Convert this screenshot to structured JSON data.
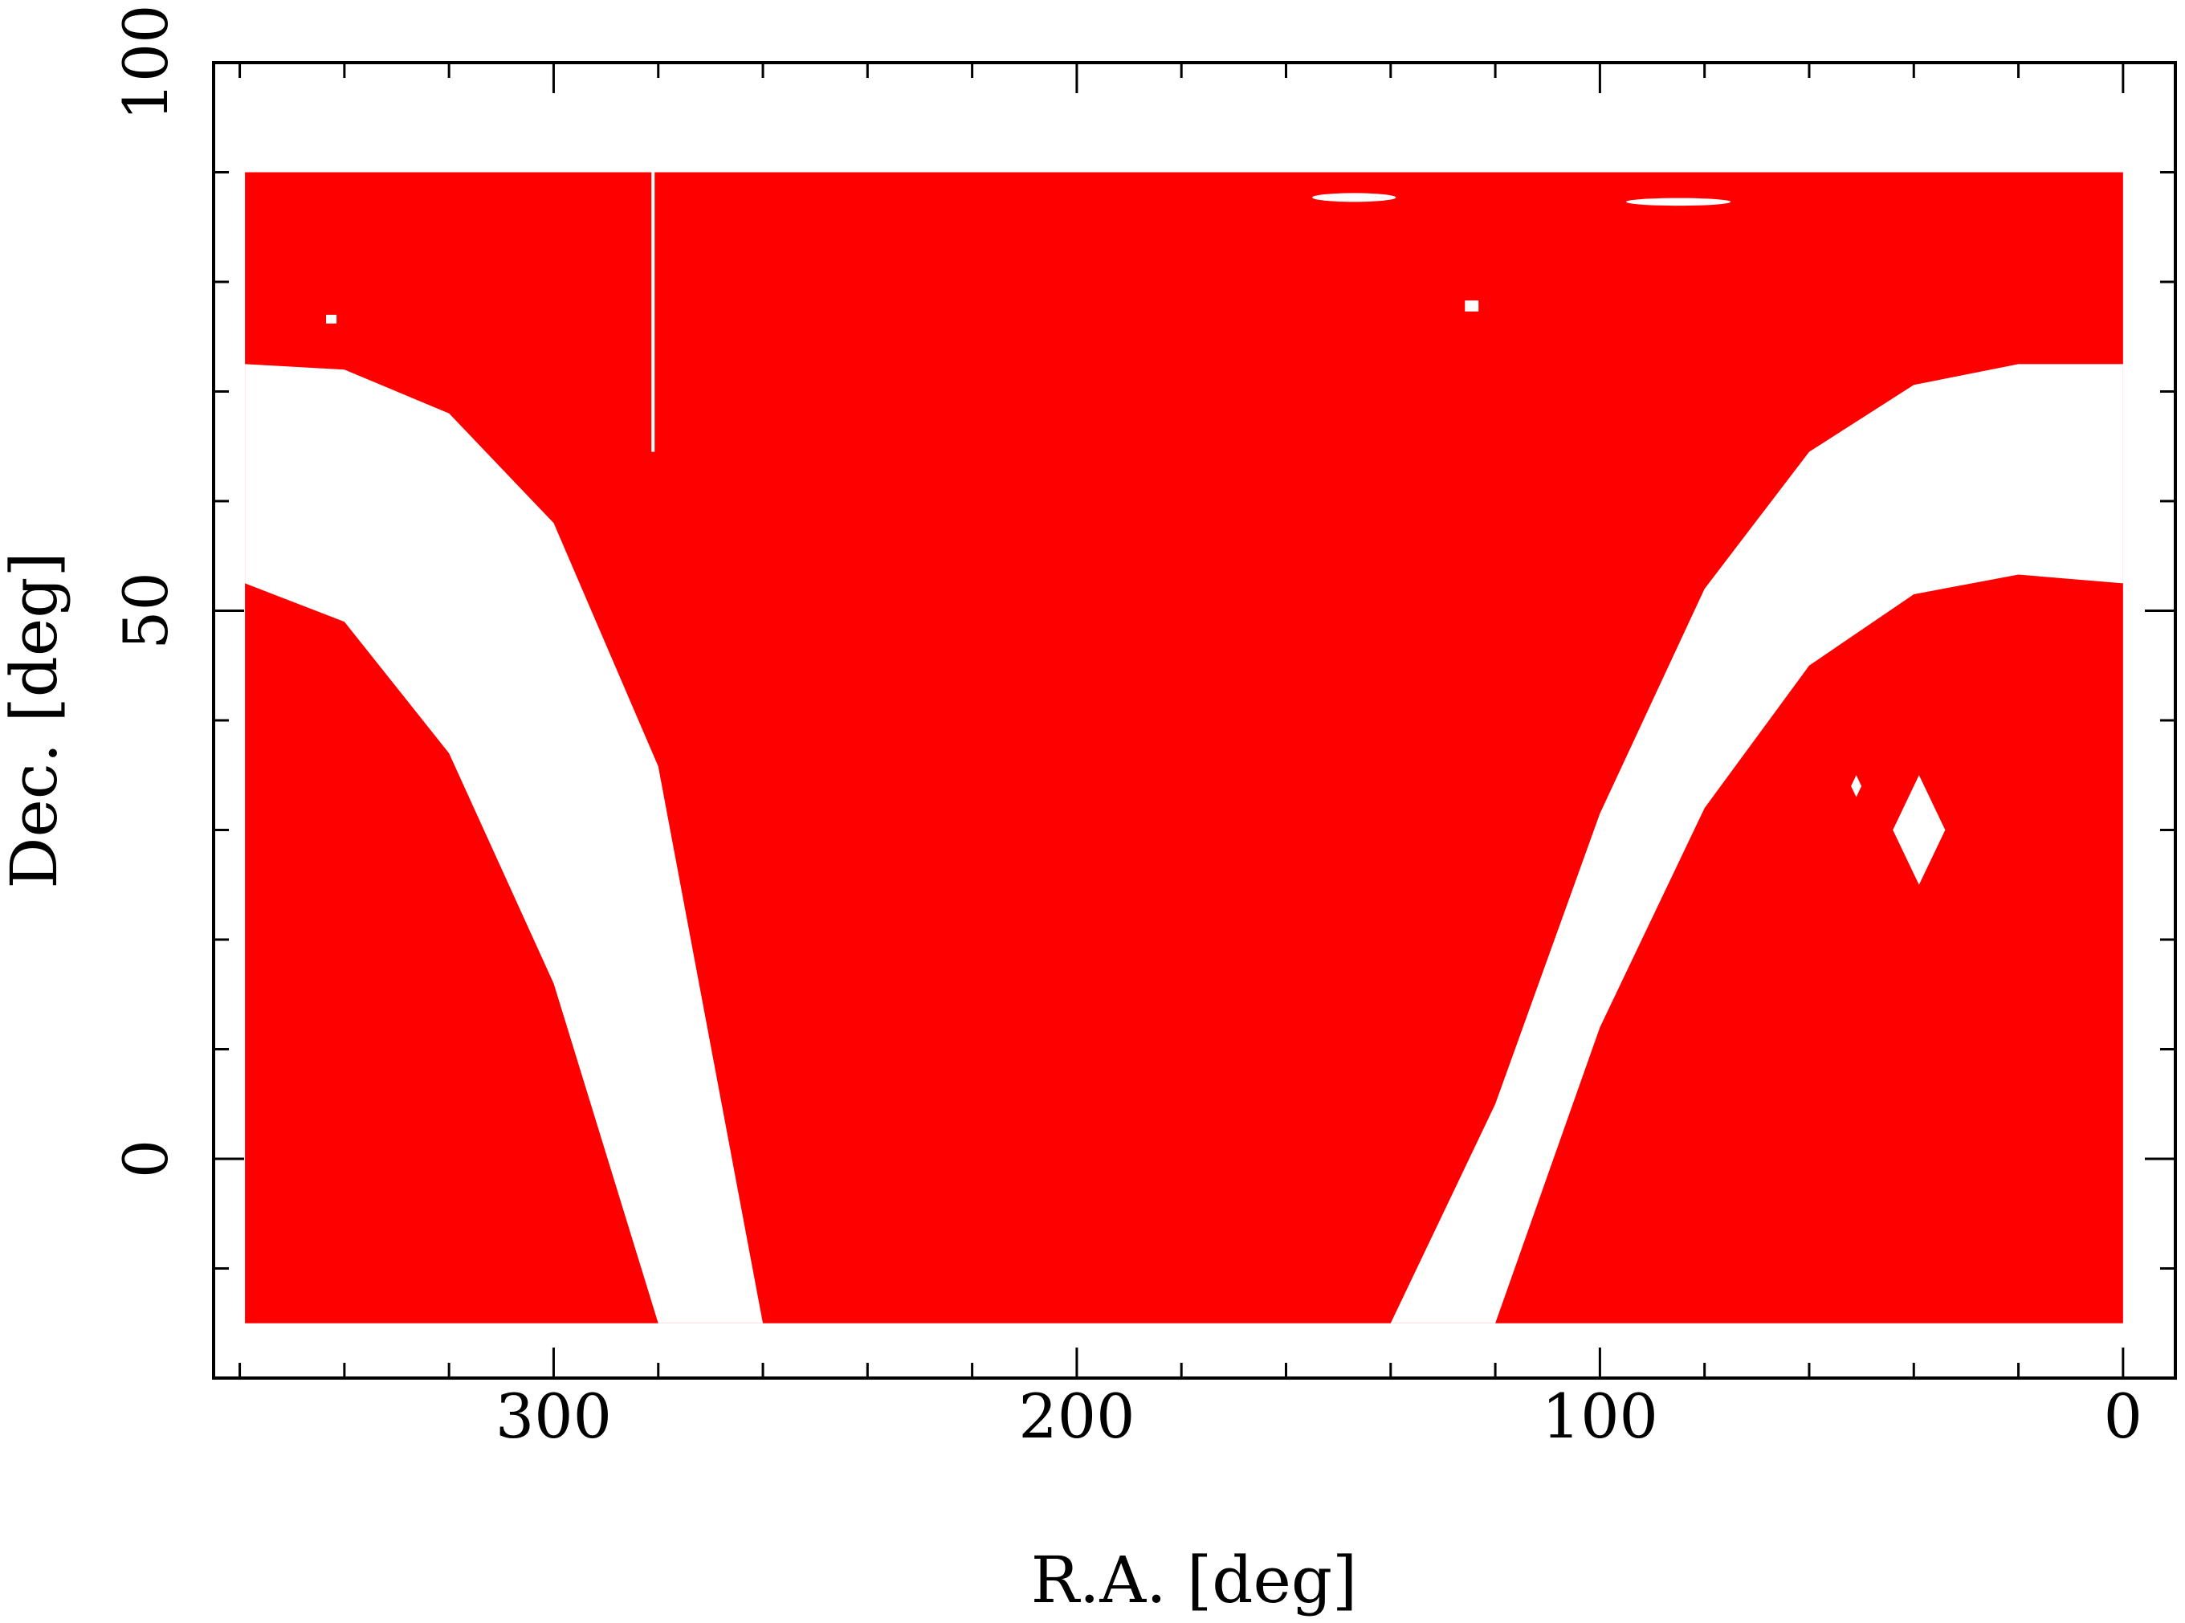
{
  "chart_data": {
    "type": "area",
    "title": "",
    "xlabel": "R.A. [deg]",
    "ylabel": "Dec. [deg]",
    "xlim": [
      365,
      -10
    ],
    "ylim": [
      -20,
      100
    ],
    "x_reversed": true,
    "grid": false,
    "legend": "none",
    "fill_color": "#ff0000",
    "x_major_ticks": [
      300,
      200,
      100,
      0
    ],
    "x_minor_step": 20,
    "y_major_ticks": [
      0,
      50,
      100
    ],
    "y_minor_step": 10,
    "coverage_region": {
      "ra_range": [
        0,
        359
      ],
      "dec_range": [
        -15,
        90
      ]
    },
    "gap_band": {
      "description_free": "",
      "upper_edge": {
        "ra": [
          0,
          20,
          40,
          60,
          80,
          100,
          120,
          140,
          160,
          180,
          200,
          220,
          240,
          260,
          280,
          300,
          320,
          340,
          359
        ],
        "dec": [
          72.5,
          72.5,
          70.6,
          64.5,
          52.0,
          31.5,
          5.0,
          -15,
          -15,
          -15,
          -15,
          -15,
          -15,
          -15,
          35.8,
          58.0,
          68.0,
          72.0,
          72.5
        ]
      },
      "lower_edge": {
        "ra": [
          0,
          20,
          40,
          60,
          80,
          100,
          120,
          140,
          160,
          180,
          200,
          220,
          240,
          260,
          280,
          300,
          320,
          340,
          359
        ],
        "dec": [
          52.5,
          53.3,
          51.5,
          45.0,
          32.0,
          12.0,
          -15,
          -15,
          -15,
          -15,
          -15,
          -15,
          -15,
          -15,
          -15,
          16.0,
          37.0,
          49.0,
          52.5
        ]
      },
      "bottom_ra_range_left_lobe": [
        279,
        251
      ],
      "bottom_ra_range_right_lobe": [
        135,
        108
      ]
    },
    "holes": [
      {
        "shape": "diamond",
        "ra": 39,
        "dec": 30,
        "half_width_ra": 5,
        "half_height_dec": 5
      },
      {
        "shape": "diamond",
        "ra": 51,
        "dec": 34,
        "half_width_ra": 1,
        "half_height_dec": 1
      },
      {
        "shape": "vline",
        "ra": 281,
        "dec_range": [
          64.5,
          90
        ]
      },
      {
        "shape": "rect",
        "ra": 342.5,
        "dec": 76.6,
        "half_width_ra": 1,
        "half_height_dec": 0.4
      },
      {
        "shape": "rect",
        "ra": 124.5,
        "dec": 77.8,
        "half_width_ra": 1.3,
        "half_height_dec": 0.5
      },
      {
        "shape": "ellipse",
        "ra": 147,
        "dec": 87.7,
        "half_width_ra": 8,
        "half_height_dec": 0.4
      },
      {
        "shape": "ellipse",
        "ra": 85,
        "dec": 87.3,
        "half_width_ra": 10,
        "half_height_dec": 0.35
      }
    ]
  }
}
